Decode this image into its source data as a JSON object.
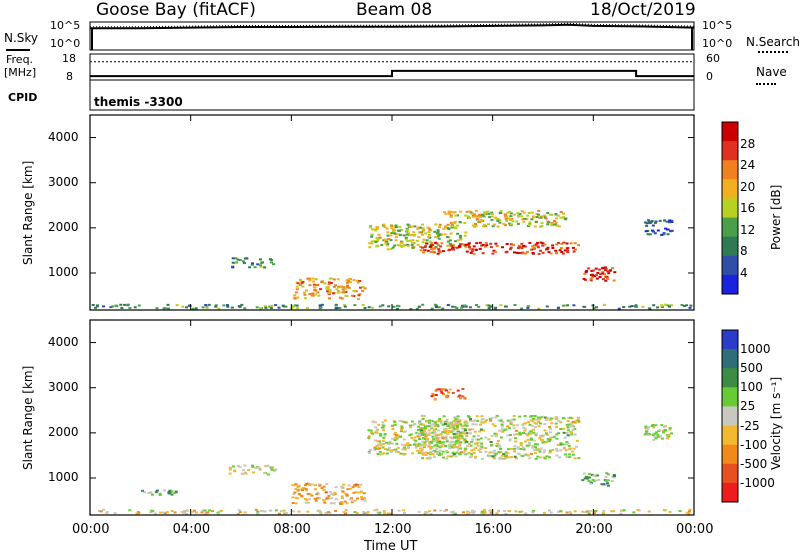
{
  "header": {
    "station": "Goose Bay (fitACF)",
    "beam": "Beam 08",
    "date": "18/Oct/2019"
  },
  "side_labels": {
    "nsky": "N.Sky",
    "freq_line1": "Freq.",
    "freq_line2": "[MHz]",
    "cpid": "CPID",
    "nsearch": "N.Search",
    "nave": "Nave"
  },
  "cpid_text": "themis -3300",
  "colors": {
    "power_scale": [
      "#1a22dd",
      "#2f4ea8",
      "#2f7a55",
      "#4aa04a",
      "#b8d020",
      "#f0b020",
      "#f08020",
      "#e03020",
      "#cc0000"
    ],
    "velocity_scale": [
      "#2a3cc8",
      "#2f6e78",
      "#3c8c44",
      "#66cc33",
      "#c8c8c0",
      "#f2b830",
      "#f08a1a",
      "#e85020",
      "#ee1c1c"
    ],
    "trace": "#000000"
  },
  "chart_data": [
    {
      "type": "line",
      "title": "N.Sky / N.Search",
      "left_label": "N.Sky",
      "right_label": "N.Search",
      "ylim_left_ticks": [
        "10^5",
        "10^0"
      ],
      "ylim_right_ticks": [
        "10^5",
        "10^0"
      ],
      "x_hours": [
        0,
        2,
        4,
        6,
        8,
        10,
        12,
        14,
        16,
        18,
        19,
        20,
        22,
        24
      ],
      "nsky_level": [
        0.78,
        0.78,
        0.8,
        0.82,
        0.82,
        0.83,
        0.83,
        0.84,
        0.86,
        0.88,
        0.9,
        0.86,
        0.84,
        0.8
      ]
    },
    {
      "type": "line",
      "title": "Freq. [MHz] / Nave",
      "left_ticks": [
        "18",
        "8"
      ],
      "right_ticks": [
        "60",
        "0"
      ],
      "freq_steps_hours": [
        0,
        12,
        21.7,
        24
      ],
      "freq_values_mhz": [
        9.5,
        11.5,
        9.5
      ],
      "nave_dotted_level": 0.7
    },
    {
      "type": "heatmap",
      "quantity": "Power",
      "xlabel": "",
      "ylabel": "Slant Range [km]",
      "x_ticks": [
        "00:00",
        "04:00",
        "08:00",
        "12:00",
        "16:00",
        "20:00",
        "00:00"
      ],
      "y_ticks": [
        "1000",
        "2000",
        "3000",
        "4000"
      ],
      "xlim_hours": [
        0,
        24
      ],
      "ylim_km": [
        180,
        4500
      ],
      "colorbar_label": "Power [dB]",
      "colorbar_ticks": [
        "4",
        "8",
        "12",
        "16",
        "20",
        "24",
        "28"
      ],
      "regions": [
        {
          "t0": 0,
          "t1": 24,
          "r0": 180,
          "r1": 320,
          "value_level": 0.35
        },
        {
          "t0": 5.5,
          "t1": 7.5,
          "r0": 1100,
          "r1": 1350,
          "value_level": 0.3
        },
        {
          "t0": 8,
          "t1": 11,
          "r0": 400,
          "r1": 900,
          "value_level": 0.65
        },
        {
          "t0": 11,
          "t1": 15,
          "r0": 1500,
          "r1": 2100,
          "value_level": 0.5
        },
        {
          "t0": 13,
          "t1": 19.5,
          "r0": 1400,
          "r1": 1700,
          "value_level": 0.85
        },
        {
          "t0": 14,
          "t1": 19,
          "r0": 2000,
          "r1": 2400,
          "value_level": 0.55
        },
        {
          "t0": 19.5,
          "t1": 21,
          "r0": 800,
          "r1": 1150,
          "value_level": 0.9
        },
        {
          "t0": 22,
          "t1": 23.2,
          "r0": 1800,
          "r1": 2200,
          "value_level": 0.2
        }
      ]
    },
    {
      "type": "heatmap",
      "quantity": "Velocity",
      "xlabel": "Time UT",
      "ylabel": "Slant Range [km]",
      "x_ticks": [
        "00:00",
        "04:00",
        "08:00",
        "12:00",
        "16:00",
        "20:00",
        "00:00"
      ],
      "y_ticks": [
        "1000",
        "2000",
        "3000",
        "4000"
      ],
      "xlim_hours": [
        0,
        24
      ],
      "ylim_km": [
        180,
        4500
      ],
      "colorbar_label": "Velocity [m s⁻¹]",
      "colorbar_ticks": [
        "1000",
        "500",
        "100",
        "25",
        "-25",
        "-100",
        "-500",
        "-1000"
      ],
      "regions": [
        {
          "t0": 0,
          "t1": 24,
          "r0": 180,
          "r1": 320,
          "value_level": 0.55
        },
        {
          "t0": 2,
          "t1": 3.5,
          "r0": 600,
          "r1": 750,
          "value_level": 0.35
        },
        {
          "t0": 5.5,
          "t1": 7.5,
          "r0": 1050,
          "r1": 1300,
          "value_level": 0.5
        },
        {
          "t0": 8,
          "t1": 11,
          "r0": 400,
          "r1": 900,
          "value_level": 0.62
        },
        {
          "t0": 11,
          "t1": 15,
          "r0": 1500,
          "r1": 2300,
          "value_level": 0.5
        },
        {
          "t0": 13,
          "t1": 19.5,
          "r0": 1400,
          "r1": 2400,
          "value_level": 0.5
        },
        {
          "t0": 13.5,
          "t1": 15,
          "r0": 2700,
          "r1": 3000,
          "value_level": 0.75
        },
        {
          "t0": 19.5,
          "t1": 21,
          "r0": 800,
          "r1": 1150,
          "value_level": 0.35
        },
        {
          "t0": 22,
          "t1": 23.2,
          "r0": 1800,
          "r1": 2200,
          "value_level": 0.5
        }
      ]
    }
  ]
}
